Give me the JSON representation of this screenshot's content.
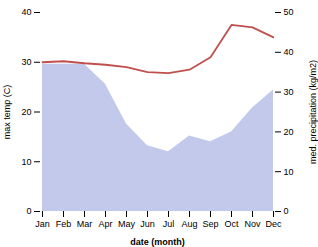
{
  "chart_data": {
    "type": "line",
    "xlabel": "date (month)",
    "ylabel": "max temp (C)",
    "y2label": "med. precipitation (kg/m2)",
    "categories": [
      "Jan",
      "Feb",
      "Mar",
      "Apr",
      "May",
      "Jun",
      "Jul",
      "Aug",
      "Sep",
      "Oct",
      "Nov",
      "Dec"
    ],
    "series": [
      {
        "type": "area",
        "axis": "y2",
        "color": "#b8c0e8",
        "values": [
          37.0,
          37.0,
          37.0,
          32.0,
          22.0,
          16.5,
          15.0,
          19.0,
          17.5,
          20.0,
          26.0,
          30.5
        ]
      },
      {
        "type": "line",
        "color": "#c0504d",
        "values": [
          30.0,
          30.2,
          29.8,
          29.5,
          29.0,
          28.0,
          27.8,
          28.5,
          31.0,
          37.5,
          37.0,
          35.0
        ]
      }
    ],
    "ylim": [
      0,
      40
    ],
    "yticks": [
      0,
      10,
      20,
      30,
      40
    ],
    "y2lim": [
      0,
      50
    ],
    "y2ticks": [
      0,
      10,
      20,
      30,
      40,
      50
    ]
  }
}
